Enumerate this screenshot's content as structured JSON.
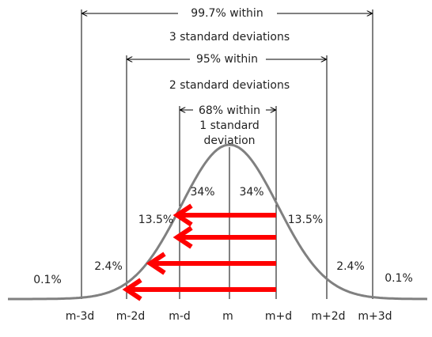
{
  "brackets": [
    {
      "label": "99.7% within",
      "caption": "3 standard deviations"
    },
    {
      "label": "95% within",
      "caption": "2 standard deviations"
    },
    {
      "label": "68% within",
      "caption": "1 standard",
      "caption_2": "deviation"
    }
  ],
  "region_labels": [
    "0.1%",
    "2.4%",
    "13.5%",
    "34%",
    "34%",
    "13.5%",
    "2.4%",
    "0.1%"
  ],
  "axis_labels": [
    "m-3d",
    "m-2d",
    "m-d",
    "m",
    "m+d",
    "m+2d",
    "m+3d"
  ]
}
